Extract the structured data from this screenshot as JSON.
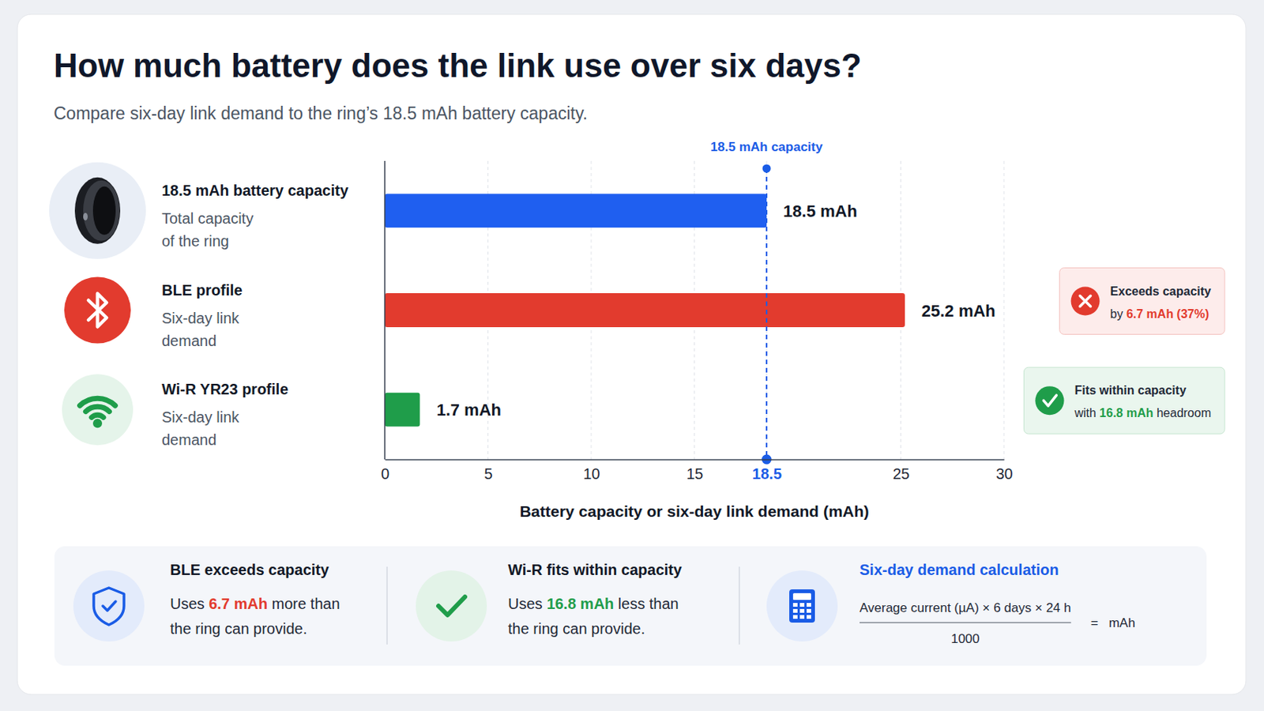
{
  "chart_data": {
    "type": "bar",
    "orientation": "horizontal",
    "title": "How much battery does the link use over six days?",
    "subtitle": "Compare six-day link demand to the ring’s 18.5 mAh battery capacity.",
    "categories": [
      "18.5 mAh battery capacity",
      "BLE profile",
      "Wi-R YR23 profile"
    ],
    "descriptions": [
      [
        "Total capacity",
        "of the ring"
      ],
      [
        "Six-day link",
        "demand"
      ],
      [
        "Six-day link",
        "demand"
      ]
    ],
    "values": [
      18.5,
      25.2,
      1.7
    ],
    "value_labels": [
      "18.5 mAh",
      "25.2 mAh",
      "1.7 mAh"
    ],
    "colors": [
      "#1f5ff0",
      "#e23b2e",
      "#1f9d4a"
    ],
    "data_labels": true,
    "xlim": [
      0,
      30
    ],
    "xticks": [
      0,
      5,
      10,
      15,
      18.5,
      25,
      30
    ],
    "xlabel": "Battery capacity or six-day link demand (mAh)",
    "grid": true,
    "tick_labels": "x",
    "reference": {
      "value": 18.5,
      "label": "18.5 mAh capacity",
      "color": "#1a5ce6"
    },
    "annotations": [
      null,
      {
        "title": "Exceeds capacity",
        "before": "by ",
        "highlight": "6.7 mAh (37%)",
        "marker": "cross",
        "color": "#e23b2e"
      },
      {
        "title": "Fits within capacity",
        "before": "with ",
        "highlight": "16.8 mAh",
        "after": " headroom",
        "marker": "check",
        "color": "#1f9d4a"
      }
    ],
    "notes": [
      {
        "title": "BLE exceeds capacity",
        "before": "Uses ",
        "highlight": "6.7 mAh",
        "after": " more than",
        "line2": "the ring can provide.",
        "marker": "shield",
        "color": "#e23b2e"
      },
      {
        "title": "Wi-R fits within capacity",
        "before": "Uses ",
        "highlight": "16.8 mAh",
        "after": " less than",
        "line2": "the ring can provide.",
        "marker": "check",
        "color": "#1f9d4a"
      },
      {
        "title": "Six-day demand calculation",
        "numerator": "Average current (µA) × 6 days × 24 h",
        "denominator": "1000",
        "equals": "=",
        "result": "mAh",
        "marker": "calculator",
        "color": "#1a5ce6"
      }
    ]
  }
}
